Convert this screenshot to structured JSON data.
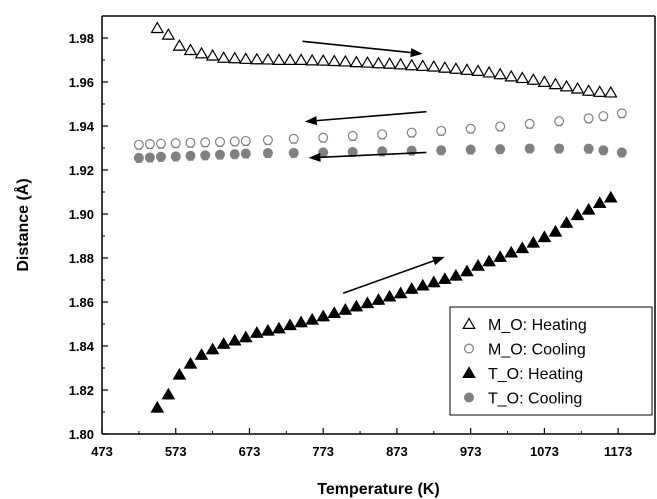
{
  "chart_data": {
    "type": "scatter",
    "title": "",
    "xlabel": "Temperature (K)",
    "ylabel": "Distance (Å)",
    "xlim": [
      473,
      1223
    ],
    "ylim": [
      1.8,
      1.99
    ],
    "x_ticks": [
      473,
      573,
      673,
      773,
      873,
      973,
      1073,
      1173
    ],
    "y_ticks": [
      1.8,
      1.82,
      1.84,
      1.86,
      1.88,
      1.9,
      1.92,
      1.94,
      1.96,
      1.98
    ],
    "x_tick_labels": [
      "473",
      "573",
      "673",
      "773",
      "873",
      "973",
      "1073",
      "1173"
    ],
    "y_tick_labels": [
      "1.80",
      "1.82",
      "1.84",
      "1.86",
      "1.88",
      "1.90",
      "1.92",
      "1.94",
      "1.96",
      "1.98"
    ],
    "grid": false,
    "legend_position": "bottom-right",
    "series": [
      {
        "name": "M_O: Heating",
        "marker": "open-triangle",
        "color": "#000000",
        "x": [
          548,
          563,
          578,
          593,
          608,
          623,
          638,
          653,
          668,
          683,
          698,
          713,
          728,
          743,
          758,
          773,
          788,
          803,
          818,
          833,
          848,
          863,
          878,
          893,
          908,
          923,
          938,
          953,
          968,
          983,
          998,
          1013,
          1028,
          1043,
          1058,
          1073,
          1088,
          1103,
          1118,
          1133,
          1148,
          1163
        ],
        "y": [
          1.9845,
          1.9815,
          1.9765,
          1.9745,
          1.973,
          1.972,
          1.971,
          1.9708,
          1.9705,
          1.9703,
          1.9702,
          1.97,
          1.97,
          1.97,
          1.9698,
          1.9697,
          1.9695,
          1.9693,
          1.969,
          1.9688,
          1.9685,
          1.9683,
          1.968,
          1.9676,
          1.9673,
          1.967,
          1.9665,
          1.966,
          1.9655,
          1.965,
          1.9643,
          1.9635,
          1.9625,
          1.9618,
          1.961,
          1.96,
          1.959,
          1.958,
          1.957,
          1.956,
          1.9555,
          1.9552
        ]
      },
      {
        "name": "M_O: Cooling",
        "marker": "open-circle",
        "color": "#808080",
        "x": [
          523,
          538,
          553,
          573,
          593,
          613,
          633,
          653,
          668,
          698,
          733,
          773,
          813,
          853,
          893,
          933,
          973,
          1013,
          1053,
          1093,
          1133,
          1153,
          1178
        ],
        "y": [
          1.9315,
          1.9318,
          1.932,
          1.9322,
          1.9324,
          1.9326,
          1.9328,
          1.933,
          1.9332,
          1.9336,
          1.9342,
          1.9347,
          1.9355,
          1.9362,
          1.937,
          1.9378,
          1.9388,
          1.9398,
          1.941,
          1.9422,
          1.9435,
          1.9445,
          1.9458
        ]
      },
      {
        "name": "T_O: Heating",
        "marker": "filled-triangle",
        "color": "#000000",
        "x": [
          548,
          563,
          578,
          593,
          608,
          623,
          638,
          653,
          668,
          683,
          698,
          713,
          728,
          743,
          758,
          773,
          788,
          803,
          818,
          833,
          848,
          863,
          878,
          893,
          908,
          923,
          938,
          953,
          968,
          983,
          998,
          1013,
          1028,
          1043,
          1058,
          1073,
          1088,
          1103,
          1118,
          1133,
          1148,
          1163
        ],
        "y": [
          1.812,
          1.818,
          1.827,
          1.832,
          1.836,
          1.8385,
          1.841,
          1.8425,
          1.844,
          1.846,
          1.847,
          1.848,
          1.8495,
          1.8508,
          1.852,
          1.8535,
          1.855,
          1.8565,
          1.858,
          1.8595,
          1.861,
          1.8625,
          1.864,
          1.866,
          1.8675,
          1.869,
          1.8705,
          1.872,
          1.874,
          1.8765,
          1.8785,
          1.8805,
          1.8825,
          1.8845,
          1.887,
          1.8895,
          1.892,
          1.896,
          1.8995,
          1.902,
          1.905,
          1.9075
        ]
      },
      {
        "name": "T_O: Cooling",
        "marker": "filled-circle",
        "color": "#808080",
        "x": [
          523,
          538,
          553,
          573,
          593,
          613,
          633,
          653,
          668,
          698,
          733,
          773,
          813,
          853,
          893,
          933,
          973,
          1013,
          1053,
          1093,
          1133,
          1153,
          1178
        ],
        "y": [
          1.9255,
          1.9257,
          1.926,
          1.9262,
          1.9265,
          1.9267,
          1.927,
          1.9272,
          1.9275,
          1.9277,
          1.9278,
          1.928,
          1.9282,
          1.9285,
          1.9288,
          1.929,
          1.9293,
          1.9295,
          1.9298,
          1.9298,
          1.9297,
          1.929,
          1.928
        ]
      }
    ],
    "annotations": [
      {
        "type": "arrow",
        "from": [
          745,
          1.9785
        ],
        "to": [
          908,
          1.9728
        ]
      },
      {
        "type": "arrow",
        "from": [
          913,
          1.9465
        ],
        "to": [
          748,
          1.942
        ]
      },
      {
        "type": "arrow",
        "from": [
          913,
          1.928
        ],
        "to": [
          753,
          1.9255
        ]
      },
      {
        "type": "arrow",
        "from": [
          800,
          1.864
        ],
        "to": [
          938,
          1.8805
        ]
      }
    ]
  }
}
